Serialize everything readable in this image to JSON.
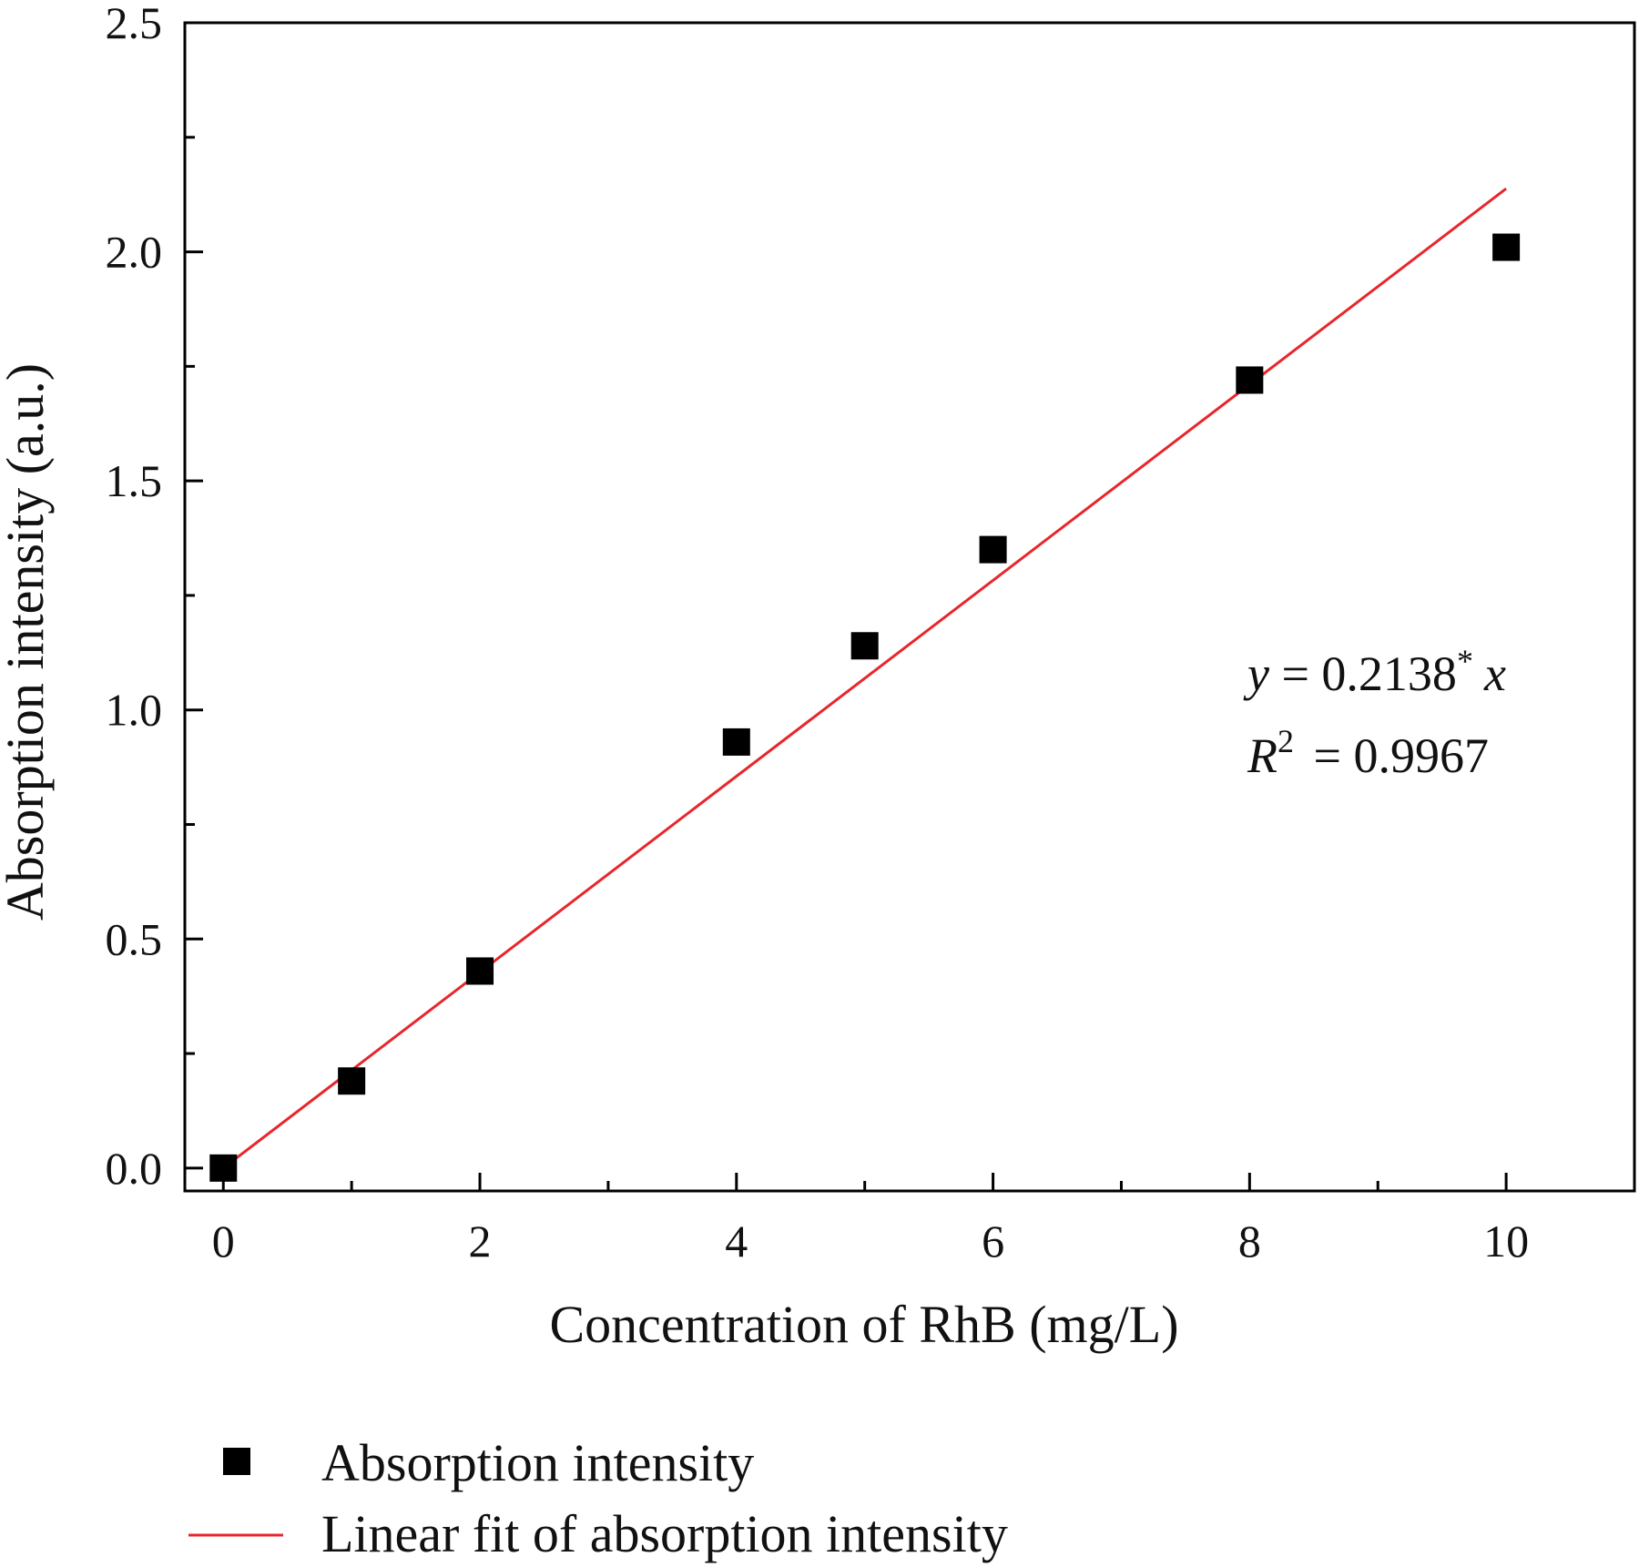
{
  "chart_data": {
    "type": "scatter",
    "xlabel": "Concentration of RhB (mg/L)",
    "ylabel": "Absorption intensity (a.u.)",
    "xlim": [
      -0.3,
      11.0
    ],
    "ylim": [
      -0.05,
      2.5
    ],
    "x_ticks": [
      0,
      2,
      4,
      6,
      8,
      10
    ],
    "x_tick_labels": [
      "0",
      "2",
      "4",
      "6",
      "8",
      "10"
    ],
    "x_minor_ticks": [
      1,
      3,
      5,
      7,
      9
    ],
    "y_ticks": [
      0.0,
      0.5,
      1.0,
      1.5,
      2.0,
      2.5
    ],
    "y_tick_labels": [
      "0.0",
      "0.5",
      "1.0",
      "1.5",
      "2.0",
      "2.5"
    ],
    "y_minor_ticks": [
      0.25,
      0.75,
      1.25,
      1.75,
      2.25
    ],
    "grid": false,
    "legend_position": "bottom-left, below plot",
    "series": [
      {
        "name": "Absorption intensity",
        "kind": "scatter",
        "marker": "square",
        "color": "#000000",
        "x": [
          0,
          1,
          2,
          4,
          5,
          6,
          8,
          10
        ],
        "y": [
          0.0,
          0.19,
          0.43,
          0.93,
          1.14,
          1.35,
          1.72,
          2.01
        ]
      },
      {
        "name": "Linear fit of absorption intensity",
        "kind": "line",
        "color": "#e8262b",
        "x": [
          0,
          10
        ],
        "y": [
          0.0,
          2.138
        ]
      }
    ],
    "annotation": {
      "eq_y": "y",
      "eq_mid": " = 0.2138",
      "eq_star": "*",
      "eq_x": "x",
      "r2_r": "R",
      "r2_exp": "2",
      "r2_val": " = 0.9967"
    }
  }
}
